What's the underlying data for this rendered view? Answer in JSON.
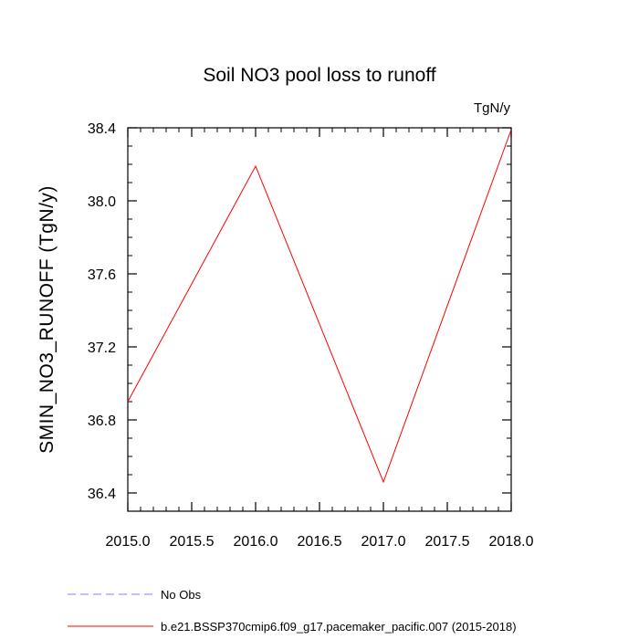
{
  "chart_data": {
    "type": "line",
    "title": "Soil NO3 pool loss to runoff",
    "units_label": "TgN/y",
    "xlabel": "",
    "ylabel": "SMIN_NO3_RUNOFF  (TgN/y)",
    "xlim": [
      2015.0,
      2018.0
    ],
    "ylim": [
      36.3,
      38.4
    ],
    "x_ticks": [
      "2015.0",
      "2015.5",
      "2016.0",
      "2016.5",
      "2017.0",
      "2017.5",
      "2018.0"
    ],
    "y_ticks": [
      "36.4",
      "36.8",
      "37.2",
      "37.6",
      "38.0",
      "38.4"
    ],
    "grid": false,
    "legend_position": "bottom-left",
    "series": [
      {
        "name": "b.e21.BSSP370cmip6.f09_g17.pacemaker_pacific.007 (2015-2018)",
        "color": "#ff0000",
        "style": "solid",
        "x": [
          2015,
          2016,
          2017,
          2018
        ],
        "y": [
          36.9,
          38.19,
          36.46,
          38.39
        ]
      }
    ],
    "legend": [
      {
        "label": "No Obs",
        "color": "#8080ff",
        "style": "dashed"
      },
      {
        "label": "b.e21.BSSP370cmip6.f09_g17.pacemaker_pacific.007 (2015-2018)",
        "color": "#ff0000",
        "style": "solid"
      }
    ]
  }
}
